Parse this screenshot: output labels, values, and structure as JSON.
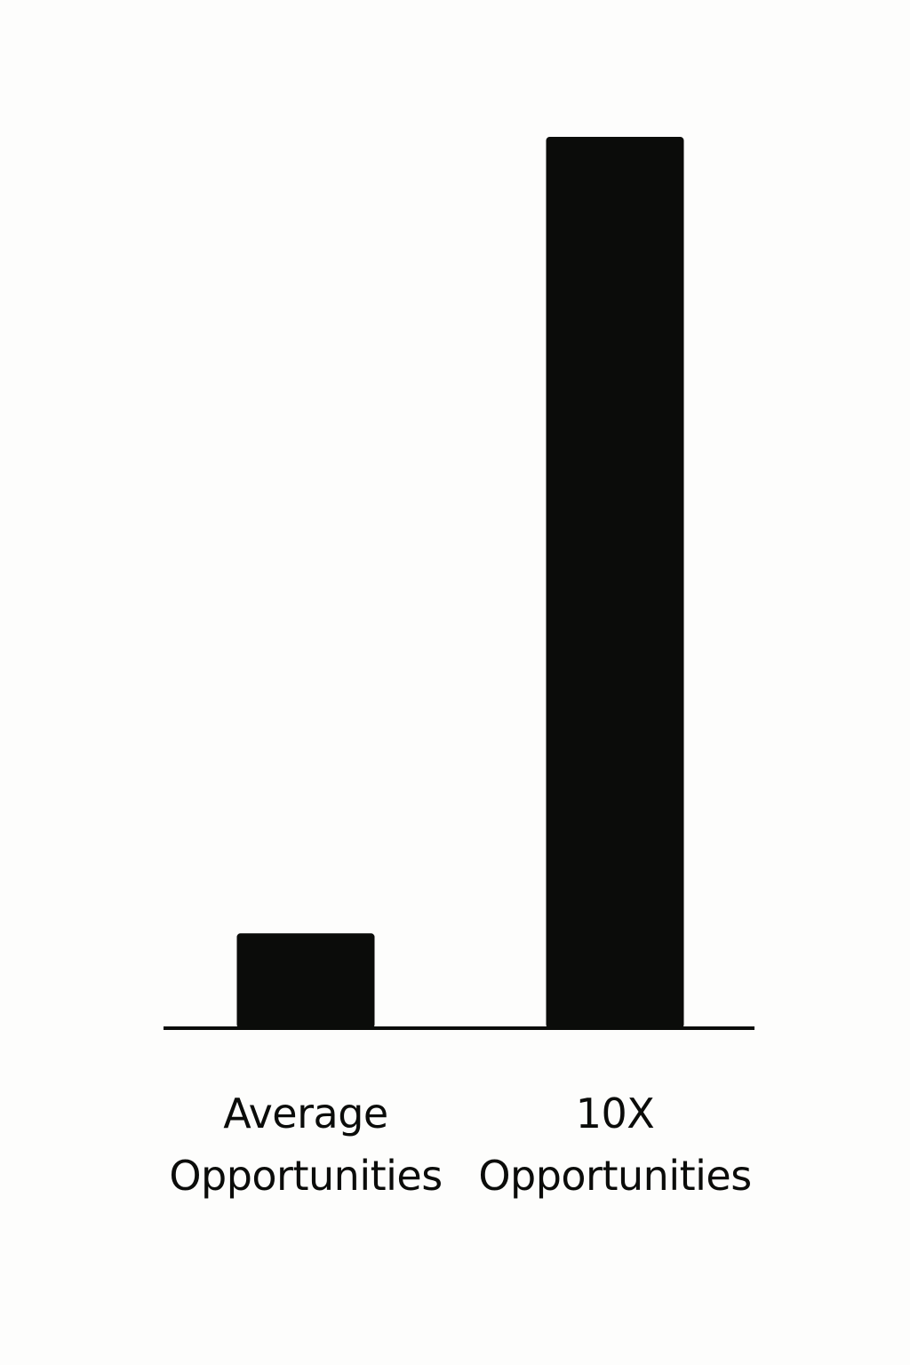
{
  "colors": {
    "background": "#fdfdfc",
    "bar": "#0b0c0a",
    "axis": "#0b0c0a",
    "text": "#0b0c0a"
  },
  "chart_data": {
    "type": "bar",
    "title": "",
    "xlabel": "",
    "ylabel": "",
    "categories": [
      {
        "line1": "Average",
        "line2": "Opportunities"
      },
      {
        "line1": "10X",
        "line2": "Opportunities"
      }
    ],
    "values": [
      1,
      9.4
    ],
    "ylim": [
      0,
      10
    ],
    "grid": false,
    "legend": "none"
  }
}
